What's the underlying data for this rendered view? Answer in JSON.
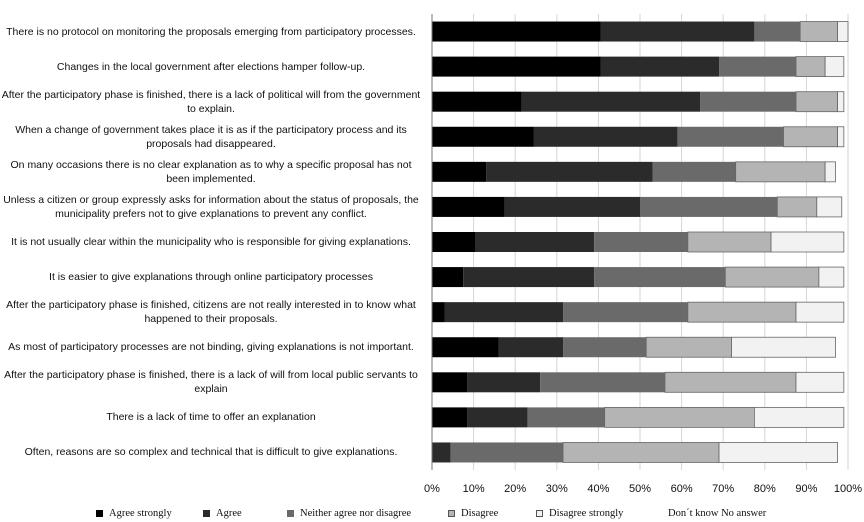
{
  "chart_data": {
    "type": "bar",
    "orientation": "horizontal",
    "stacked": true,
    "grid": true,
    "legend_position": "bottom",
    "xlim": [
      0,
      100
    ],
    "x_ticks": [
      "0%",
      "10%",
      "20%",
      "30%",
      "40%",
      "50%",
      "60%",
      "70%",
      "80%",
      "90%",
      "100%"
    ],
    "categories": [
      "There is no protocol on monitoring the proposals emerging from participatory processes.",
      "Changes in the local government after elections hamper follow-up.",
      "After the participatory phase is finished, there is a lack of political will from the government to explain.",
      "When a change of government takes place it is as if the participatory process and its proposals had disappeared.",
      "On many occasions there is no clear explanation as to why a specific proposal has not been implemented.",
      "Unless a citizen or group expressly asks for information about the status of proposals, the municipality prefers not to give explanations to prevent any conflict.",
      "It is not usually clear within the municipality who is responsible for giving explanations.",
      "It is easier to give explanations through online participatory processes",
      "After the participatory phase is finished, citizens are not really interested in to know what happened to their proposals.",
      "As most of participatory processes are not binding, giving explanations is not important.",
      "After the participatory phase is finished, there is a lack of will from local public servants to explain",
      "There is a lack of time to offer an explanation",
      "Often, reasons are so complex and technical that is difficult to give explanations."
    ],
    "series": [
      {
        "name": "Agree strongly",
        "color": "#000000",
        "values": [
          40.5,
          40.5,
          21.5,
          24.5,
          13,
          17.5,
          10.5,
          7.5,
          3,
          16,
          8.5,
          8.5,
          0
        ]
      },
      {
        "name": "Agree",
        "color": "#2b2b2b",
        "values": [
          37,
          28.5,
          43,
          34.5,
          40,
          32.5,
          28.5,
          31.5,
          28.5,
          15.5,
          17.5,
          14.5,
          4.5
        ]
      },
      {
        "name": "Neither agree nor disagree",
        "color": "#6a6a6a",
        "values": [
          11,
          18.5,
          23,
          25.5,
          20,
          33,
          22.5,
          31.5,
          30,
          20,
          30,
          18.5,
          27
        ]
      },
      {
        "name": "Disagree",
        "color": "#b4b4b4",
        "values": [
          9,
          7,
          10,
          13,
          21.5,
          9.5,
          20,
          22.5,
          26,
          20.5,
          31.5,
          36,
          37.5
        ]
      },
      {
        "name": "Disagree strongly",
        "color": "#f2f2f2",
        "values": [
          2.5,
          4.5,
          1.5,
          1.5,
          2.5,
          6,
          17.5,
          6,
          11.5,
          25,
          11.5,
          21.5,
          28.5
        ]
      },
      {
        "name": "Don´t know  No answer",
        "color": "#ffffff",
        "values": [
          0,
          0,
          0,
          0,
          0,
          0,
          0,
          0,
          0,
          0,
          0,
          0,
          0
        ]
      }
    ],
    "title": "",
    "xlabel": "",
    "ylabel": ""
  }
}
